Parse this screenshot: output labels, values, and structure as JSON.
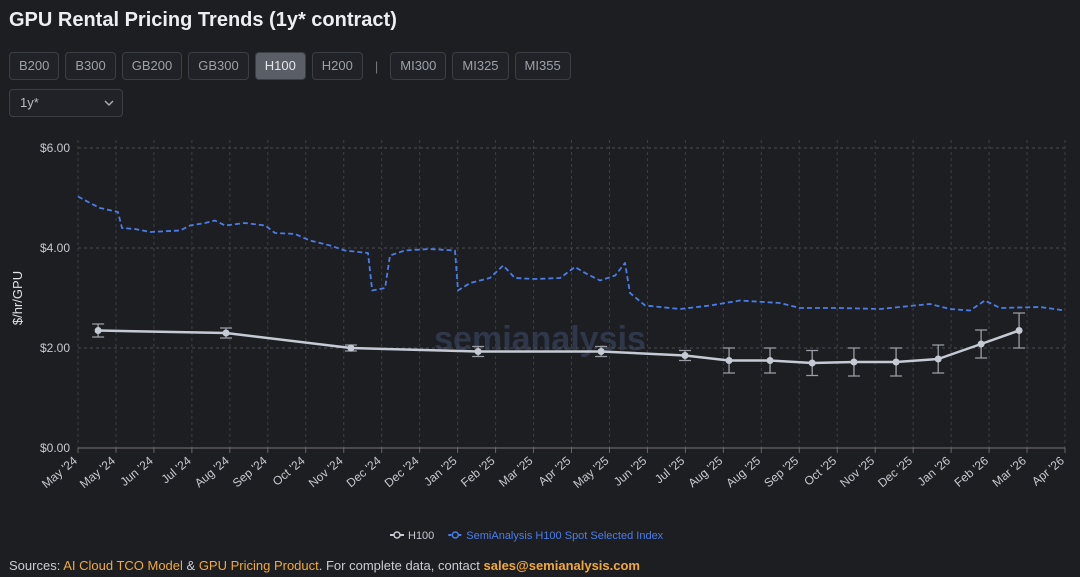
{
  "header": {
    "title": "GPU Rental Pricing Trends (1y* contract)",
    "button_groups": [
      [
        "B200",
        "B300",
        "GB200",
        "GB300",
        "H100",
        "H200"
      ],
      [
        "MI300",
        "MI325",
        "MI355"
      ]
    ],
    "selected": "H100",
    "dropdown": "1y*"
  },
  "chart_data": {
    "type": "line",
    "ylabel": "$/hr/GPU",
    "watermark": "semianalysis",
    "xlim": [
      0,
      26
    ],
    "xticks": [
      {
        "value": 0,
        "label": "May '24"
      },
      {
        "value": 1,
        "label": "May '24"
      },
      {
        "value": 2,
        "label": "Jun '24"
      },
      {
        "value": 3,
        "label": "Jul '24"
      },
      {
        "value": 4,
        "label": "Aug '24"
      },
      {
        "value": 5,
        "label": "Sep '24"
      },
      {
        "value": 6,
        "label": "Oct '24"
      },
      {
        "value": 7,
        "label": "Nov '24"
      },
      {
        "value": 8,
        "label": "Dec '24"
      },
      {
        "value": 9,
        "label": "Dec '24"
      },
      {
        "value": 10,
        "label": "Jan '25"
      },
      {
        "value": 11,
        "label": "Feb '25"
      },
      {
        "value": 12,
        "label": "Mar '25"
      },
      {
        "value": 13,
        "label": "Apr '25"
      },
      {
        "value": 14,
        "label": "May '25"
      },
      {
        "value": 15,
        "label": "Jun '25"
      },
      {
        "value": 16,
        "label": "Jul '25"
      },
      {
        "value": 17,
        "label": "Aug '25"
      },
      {
        "value": 18,
        "label": "Aug '25"
      },
      {
        "value": 19,
        "label": "Sep '25"
      },
      {
        "value": 20,
        "label": "Oct '25"
      },
      {
        "value": 21,
        "label": "Nov '25"
      },
      {
        "value": 22,
        "label": "Dec '25"
      },
      {
        "value": 23,
        "label": "Jan '26"
      },
      {
        "value": 24,
        "label": "Feb '26"
      },
      {
        "value": 25,
        "label": "Mar '26"
      },
      {
        "value": 26,
        "label": "Apr '26"
      }
    ],
    "ylim": [
      0,
      6
    ],
    "yticks": [
      {
        "value": 0,
        "label": "$0.00"
      },
      {
        "value": 2,
        "label": "$2.00"
      },
      {
        "value": 4,
        "label": "$4.00"
      },
      {
        "value": 6,
        "label": "$6.00"
      }
    ],
    "grid": true,
    "series": [
      {
        "name": "H100",
        "color": "#c5cad4",
        "style": "solid",
        "x": [
          0.53,
          3.9,
          7.19,
          10.54,
          13.78,
          15.99,
          17.15,
          18.23,
          19.34,
          20.44,
          21.55,
          22.66,
          23.79,
          24.79
        ],
        "values": [
          2.35,
          2.3,
          2.0,
          1.93,
          1.93,
          1.85,
          1.75,
          1.75,
          1.7,
          1.72,
          1.72,
          1.78,
          2.08,
          2.35
        ],
        "errors": [
          0.13,
          0.1,
          0.06,
          0.1,
          0.1,
          0.1,
          0.25,
          0.25,
          0.25,
          0.28,
          0.28,
          0.28,
          0.28,
          0.35
        ]
      },
      {
        "name": "SemiAnalysis H100 Spot Selected Index",
        "color": "#4a7de8",
        "style": "dashed",
        "x": [
          0,
          0.32,
          0.58,
          1.05,
          1.16,
          1.5,
          1.9,
          2.69,
          2.95,
          3.35,
          3.61,
          3.87,
          4.4,
          4.93,
          5.19,
          5.72,
          6.11,
          6.64,
          7.03,
          7.64,
          7.75,
          8.09,
          8.22,
          8.61,
          9.27,
          9.93,
          10.01,
          10.33,
          10.85,
          11.2,
          11.51,
          12.04,
          12.7,
          13.09,
          13.36,
          13.75,
          14.15,
          14.41,
          14.54,
          14.94,
          15.86,
          16.65,
          17.44,
          18.49,
          19.02,
          20.07,
          21.13,
          21.65,
          22.44,
          22.97,
          23.5,
          23.89,
          24.29,
          25.34,
          26
        ],
        "values": [
          5.03,
          4.9,
          4.8,
          4.72,
          4.4,
          4.38,
          4.32,
          4.35,
          4.45,
          4.5,
          4.55,
          4.45,
          4.5,
          4.45,
          4.3,
          4.28,
          4.15,
          4.05,
          3.95,
          3.9,
          3.15,
          3.2,
          3.85,
          3.95,
          3.98,
          3.95,
          3.15,
          3.3,
          3.4,
          3.65,
          3.4,
          3.38,
          3.4,
          3.62,
          3.5,
          3.35,
          3.45,
          3.7,
          3.1,
          2.85,
          2.78,
          2.85,
          2.95,
          2.9,
          2.8,
          2.8,
          2.78,
          2.82,
          2.88,
          2.78,
          2.75,
          2.95,
          2.8,
          2.82,
          2.75
        ]
      }
    ]
  },
  "footer": {
    "parts": [
      "Sources: ",
      "AI Cloud TCO Model",
      " & ",
      "GPU Pricing Product",
      ". For complete data, contact ",
      "sales@semianalysis.com"
    ]
  }
}
